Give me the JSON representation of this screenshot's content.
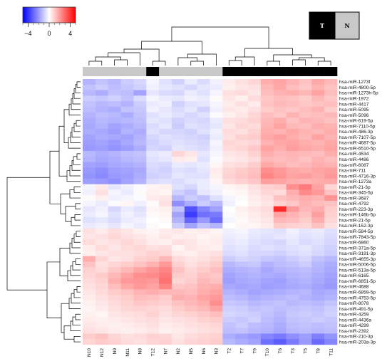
{
  "chart_data": {
    "type": "heatmap",
    "color_scale": {
      "ticks": [
        "−4",
        "0",
        "4"
      ],
      "min": -5,
      "max": 5,
      "low_color": "#0000ff",
      "mid_color": "#ffffff",
      "high_color": "#ff0000"
    },
    "group_legend": [
      {
        "label": "T",
        "color": "#000000",
        "text_color": "#ffffff"
      },
      {
        "label": "N",
        "color": "#c8c8c8",
        "text_color": "#000000"
      }
    ],
    "columns": [
      "N10",
      "N12",
      "N9",
      "N11",
      "N8",
      "T12",
      "N7",
      "N2",
      "N5",
      "N6",
      "N3",
      "T2",
      "T7",
      "T9",
      "T10",
      "T6",
      "T3",
      "T5",
      "T8",
      "T11"
    ],
    "column_groups": [
      "N",
      "N",
      "N",
      "N",
      "N",
      "T",
      "N",
      "N",
      "N",
      "N",
      "N",
      "T",
      "T",
      "T",
      "T",
      "T",
      "T",
      "T",
      "T",
      "T"
    ],
    "rows": [
      "hsa-miR-1273f",
      "hsa-miR-4800-5p",
      "hsa-miR-1273h-5p",
      "hsa-miR-1972",
      "hsa-miR-4417",
      "hsa-miR-5095",
      "hsa-miR-5096",
      "hsa-miR-619-5p",
      "hsa-miR-7110-5p",
      "hsa-miR-486-3p",
      "hsa-miR-7107-5p",
      "hsa-miR-4687-5p",
      "hsa-miR-6510-5p",
      "hsa-miR-4534",
      "hsa-miR-4486",
      "hsa-miR-6087",
      "hsa-miR-711",
      "hsa-miR-4716-3p",
      "hsa-miR-1273a",
      "hsa-miR-21-3p",
      "hsa-miR-345-5p",
      "hsa-miR-3687",
      "hsa-miR-4792",
      "hsa-miR-223-3p",
      "hsa-miR-146b-5p",
      "hsa-miR-21-5p",
      "hsa-miR-152-3p",
      "hsa-miR-584-5p",
      "hsa-miR-7843-5p",
      "hsa-miR-6860",
      "hsa-miR-371a-5p",
      "hsa-miR-3191-3p",
      "hsa-miR-4655-3p",
      "hsa-miR-5006-5p",
      "hsa-miR-513a-5p",
      "hsa-miR-6165",
      "hsa-miR-6851-5p",
      "hsa-miR-4688",
      "hsa-miR-6859-5p",
      "hsa-miR-4753-5p",
      "hsa-miR-8078",
      "hsa-miR-491-5p",
      "hsa-miR-4259",
      "hsa-miR-4436a",
      "hsa-miR-4299",
      "hsa-miR-2392",
      "hsa-miR-210-3p",
      "hsa-miR-203a-3p"
    ],
    "values": [
      [
        -1.5,
        -1.2,
        -1.4,
        -1.0,
        -0.8,
        -0.2,
        -0.6,
        -0.9,
        -0.4,
        -0.7,
        -0.3,
        0.4,
        0.6,
        0.8,
        1.6,
        1.8,
        1.5,
        1.2,
        1.7,
        1.4
      ],
      [
        -1.2,
        -1.0,
        -1.3,
        -1.1,
        -0.9,
        -0.3,
        -0.5,
        -0.6,
        -0.8,
        -0.5,
        -0.4,
        0.3,
        0.5,
        0.6,
        1.4,
        1.7,
        1.3,
        1.1,
        1.5,
        1.2
      ],
      [
        -1.4,
        -1.6,
        -1.2,
        -1.3,
        -1.8,
        -0.5,
        -0.7,
        -0.8,
        -0.4,
        -0.6,
        -0.2,
        0.6,
        0.7,
        0.5,
        1.3,
        1.5,
        1.6,
        1.4,
        1.8,
        1.3
      ],
      [
        -1.0,
        -1.1,
        -0.9,
        -1.2,
        -0.7,
        -0.2,
        -0.4,
        -0.5,
        -0.3,
        -0.4,
        0.1,
        0.5,
        0.3,
        0.7,
        1.1,
        1.3,
        1.2,
        1.0,
        1.4,
        1.1
      ],
      [
        -1.2,
        -1.4,
        -1.3,
        -1.5,
        -1.0,
        -0.4,
        -0.3,
        -0.9,
        -0.6,
        -0.5,
        -0.2,
        0.4,
        0.6,
        0.4,
        1.2,
        1.4,
        1.3,
        1.1,
        1.2,
        1.3
      ],
      [
        -1.3,
        -1.5,
        -1.6,
        -1.2,
        -1.1,
        -0.3,
        -0.5,
        -0.7,
        -0.5,
        -0.9,
        -0.3,
        0.5,
        0.4,
        0.6,
        1.0,
        1.2,
        1.1,
        1.3,
        1.5,
        1.0
      ],
      [
        -1.5,
        -1.3,
        -1.4,
        -1.6,
        -1.2,
        -0.6,
        -0.4,
        -0.6,
        -0.8,
        -0.6,
        -0.1,
        0.3,
        0.5,
        0.8,
        1.3,
        1.1,
        1.5,
        1.2,
        1.3,
        1.4
      ],
      [
        -1.6,
        -1.4,
        -1.5,
        -1.4,
        -1.3,
        -0.5,
        -0.6,
        -0.9,
        -0.7,
        -0.8,
        -0.4,
        0.6,
        0.7,
        0.9,
        1.4,
        1.6,
        1.2,
        1.5,
        1.4,
        1.2
      ],
      [
        -1.7,
        -1.5,
        -1.8,
        -1.6,
        -1.4,
        -0.7,
        -0.5,
        -1.0,
        -0.6,
        -0.7,
        -0.5,
        0.5,
        0.8,
        0.7,
        1.5,
        1.8,
        1.4,
        1.3,
        1.6,
        1.5
      ],
      [
        -1.6,
        -1.7,
        -1.9,
        -1.5,
        -1.6,
        -0.6,
        -0.8,
        -0.8,
        -0.9,
        -0.6,
        -0.3,
        0.7,
        0.6,
        0.9,
        1.6,
        1.5,
        1.7,
        1.5,
        1.4,
        1.6
      ],
      [
        -1.8,
        -1.6,
        -1.7,
        -1.8,
        -1.5,
        -0.8,
        -0.6,
        -0.7,
        -0.8,
        -0.9,
        -0.4,
        0.6,
        0.9,
        1.0,
        1.7,
        1.9,
        1.6,
        1.4,
        1.8,
        1.5
      ],
      [
        -1.9,
        -1.8,
        -2.0,
        -1.7,
        -1.4,
        -0.9,
        -0.7,
        -0.6,
        -0.7,
        -0.8,
        -0.2,
        0.8,
        0.7,
        0.8,
        1.5,
        1.7,
        1.8,
        1.6,
        1.5,
        1.7
      ],
      [
        -2.0,
        -1.9,
        -2.1,
        -1.9,
        -1.6,
        -0.8,
        -0.9,
        -0.5,
        -0.6,
        -0.7,
        -0.3,
        0.7,
        0.8,
        1.1,
        1.8,
        1.6,
        1.9,
        1.7,
        1.6,
        1.8
      ],
      [
        -1.4,
        -1.6,
        -1.5,
        -1.3,
        -1.2,
        -0.5,
        -0.4,
        0.8,
        0.5,
        -0.5,
        -0.2,
        0.5,
        0.6,
        0.9,
        1.6,
        1.4,
        1.5,
        1.4,
        1.3,
        1.6
      ],
      [
        -1.5,
        -1.7,
        -1.6,
        -1.4,
        -1.3,
        -0.6,
        -0.5,
        0.4,
        0.3,
        -0.6,
        -0.1,
        0.4,
        0.5,
        0.7,
        1.4,
        1.3,
        1.4,
        1.2,
        1.5,
        1.3
      ],
      [
        -1.8,
        -1.9,
        -1.7,
        -1.6,
        -1.5,
        -0.7,
        -0.8,
        -0.4,
        -0.5,
        -0.4,
        0.2,
        0.6,
        0.7,
        1.0,
        1.7,
        1.5,
        1.3,
        1.4,
        1.6,
        1.5
      ],
      [
        -2.0,
        -2.2,
        -1.9,
        -1.8,
        -1.7,
        -0.8,
        -0.9,
        -0.6,
        -0.7,
        -0.5,
        0.4,
        0.8,
        1.0,
        1.2,
        2.2,
        2.0,
        1.7,
        1.6,
        1.8,
        1.9
      ],
      [
        -2.1,
        -2.3,
        -2.0,
        -1.9,
        -1.6,
        -0.9,
        -0.8,
        -0.5,
        -0.6,
        -0.6,
        0.3,
        0.9,
        1.1,
        1.3,
        2.4,
        2.1,
        1.8,
        1.9,
        1.7,
        2.0
      ],
      [
        -1.9,
        -2.0,
        -2.2,
        -1.8,
        -1.5,
        -0.7,
        -0.6,
        -0.7,
        -0.5,
        -0.4,
        0.2,
        0.7,
        0.9,
        1.1,
        1.9,
        1.8,
        1.6,
        1.5,
        1.6,
        1.7
      ],
      [
        -0.2,
        0.4,
        -0.5,
        -0.3,
        -0.1,
        0.2,
        0.3,
        -0.6,
        -0.8,
        -0.4,
        -0.2,
        0.2,
        0.3,
        0.6,
        0.9,
        1.0,
        2.2,
        2.6,
        1.8,
        0.8
      ],
      [
        -0.3,
        0.6,
        -0.2,
        -0.4,
        0.1,
        0.3,
        0.2,
        -0.9,
        -1.2,
        -0.5,
        -0.3,
        0.1,
        0.2,
        0.5,
        0.8,
        0.7,
        1.6,
        2.3,
        2.0,
        1.2
      ],
      [
        0.1,
        0.3,
        -0.3,
        -0.2,
        -0.1,
        0.4,
        0.5,
        -1.4,
        -1.0,
        -1.2,
        -0.6,
        -0.2,
        0.1,
        0.4,
        0.6,
        1.2,
        1.4,
        1.6,
        1.5,
        2.1
      ],
      [
        -0.2,
        -0.4,
        -0.1,
        0.2,
        -0.3,
        0.1,
        0.6,
        -2.2,
        -1.6,
        -1.0,
        -1.4,
        -0.3,
        0.0,
        0.3,
        0.5,
        0.9,
        1.1,
        1.5,
        1.3,
        1.2
      ],
      [
        -0.5,
        -0.3,
        -0.8,
        -0.4,
        -0.6,
        0.2,
        0.3,
        -1.2,
        -3.4,
        -2.4,
        -1.8,
        0.0,
        0.3,
        0.5,
        0.7,
        4.2,
        2.0,
        1.4,
        1.6,
        1.0
      ],
      [
        -0.4,
        -0.2,
        -0.6,
        -0.3,
        -0.5,
        0.1,
        0.2,
        -1.8,
        -3.8,
        -2.8,
        -2.6,
        -0.1,
        0.2,
        0.4,
        0.6,
        1.8,
        1.5,
        1.2,
        1.9,
        0.9
      ],
      [
        -0.6,
        -0.5,
        -0.7,
        -0.4,
        -0.3,
        0.0,
        0.1,
        -1.5,
        -3.0,
        -2.0,
        -2.9,
        -0.2,
        0.1,
        0.3,
        0.5,
        1.4,
        1.3,
        1.0,
        1.6,
        0.8
      ],
      [
        -0.4,
        -0.3,
        -0.5,
        -0.2,
        -0.4,
        0.1,
        0.0,
        -1.0,
        -1.8,
        -1.2,
        -1.5,
        0.0,
        0.2,
        0.2,
        0.4,
        1.0,
        0.9,
        0.8,
        1.2,
        0.6
      ],
      [
        0.6,
        0.4,
        0.7,
        0.5,
        0.3,
        0.2,
        0.4,
        0.5,
        0.3,
        0.4,
        0.2,
        -0.3,
        -0.2,
        -0.4,
        -0.5,
        -0.6,
        -0.3,
        -0.5,
        -0.4,
        -0.6
      ],
      [
        0.5,
        0.6,
        0.8,
        0.6,
        0.5,
        0.3,
        0.5,
        0.3,
        0.4,
        0.2,
        0.3,
        -0.4,
        -0.3,
        -0.5,
        -0.6,
        -0.5,
        -0.4,
        -0.6,
        -0.5,
        -0.7
      ],
      [
        0.7,
        0.5,
        0.6,
        0.8,
        0.6,
        0.4,
        0.3,
        0.6,
        0.5,
        0.3,
        0.4,
        -0.5,
        -0.4,
        -0.6,
        -0.7,
        -0.8,
        -0.5,
        -0.7,
        -0.6,
        -0.8
      ],
      [
        0.4,
        0.7,
        0.5,
        0.7,
        0.8,
        0.6,
        0.7,
        0.2,
        0.5,
        0.4,
        0.3,
        -0.6,
        -0.5,
        -0.7,
        -0.6,
        -0.7,
        -0.6,
        -0.5,
        -0.7,
        -0.9
      ],
      [
        0.3,
        0.5,
        0.6,
        0.6,
        0.7,
        0.9,
        0.8,
        0.4,
        0.3,
        0.5,
        0.6,
        -0.7,
        -0.6,
        -0.8,
        -0.8,
        -0.9,
        -0.7,
        -0.6,
        -0.8,
        -1.0
      ],
      [
        1.6,
        0.8,
        0.5,
        0.6,
        0.9,
        1.0,
        1.4,
        0.7,
        0.5,
        0.6,
        0.8,
        -1.0,
        -0.8,
        -0.9,
        -1.1,
        -1.2,
        -1.0,
        -0.8,
        -1.2,
        -1.4
      ],
      [
        1.2,
        0.6,
        0.8,
        1.0,
        1.2,
        1.5,
        2.0,
        0.9,
        0.6,
        0.8,
        1.0,
        -1.4,
        -1.2,
        -1.1,
        -1.5,
        -1.3,
        -1.2,
        -1.0,
        -1.4,
        -1.6
      ],
      [
        0.9,
        0.7,
        1.1,
        1.4,
        1.8,
        2.1,
        2.4,
        1.2,
        0.8,
        1.0,
        1.3,
        -1.6,
        -1.5,
        -1.4,
        -1.7,
        -1.5,
        -1.4,
        -1.3,
        -1.5,
        -1.7
      ],
      [
        0.8,
        1.0,
        1.4,
        1.8,
        2.2,
        2.3,
        2.6,
        1.0,
        0.9,
        1.2,
        1.1,
        -1.8,
        -1.6,
        -1.5,
        -1.6,
        -1.7,
        -1.5,
        -1.4,
        -1.6,
        -1.8
      ],
      [
        0.7,
        0.9,
        1.6,
        2.0,
        2.1,
        2.0,
        2.8,
        0.8,
        1.0,
        1.4,
        1.2,
        -1.9,
        -1.7,
        -1.6,
        -1.8,
        -1.9,
        -1.6,
        -1.5,
        -1.7,
        -1.9
      ],
      [
        0.6,
        0.8,
        1.3,
        1.7,
        2.0,
        1.8,
        2.4,
        1.1,
        1.2,
        1.5,
        1.6,
        -1.7,
        -1.8,
        -1.7,
        -1.9,
        -1.8,
        -1.7,
        -1.6,
        -1.8,
        -2.0
      ],
      [
        0.5,
        0.7,
        1.0,
        1.2,
        1.5,
        1.6,
        1.4,
        1.4,
        1.3,
        1.6,
        1.8,
        -1.5,
        -1.6,
        -1.8,
        -1.7,
        -1.6,
        -1.5,
        -1.4,
        -1.7,
        -1.6
      ],
      [
        0.4,
        0.6,
        0.8,
        1.0,
        1.3,
        1.2,
        1.0,
        1.6,
        1.5,
        1.8,
        2.0,
        -1.3,
        -1.4,
        -1.6,
        -1.5,
        -1.4,
        -1.3,
        -1.5,
        -1.6,
        -1.5
      ],
      [
        0.3,
        0.5,
        0.7,
        0.9,
        1.1,
        1.0,
        0.9,
        1.2,
        1.4,
        1.6,
        2.2,
        -1.1,
        -1.2,
        -1.4,
        -1.3,
        -1.2,
        -1.4,
        -1.3,
        -1.4,
        -1.2
      ],
      [
        0.2,
        0.4,
        0.6,
        0.8,
        0.9,
        0.8,
        0.7,
        1.0,
        1.2,
        1.4,
        1.8,
        -0.9,
        -1.0,
        -1.2,
        -1.1,
        -1.3,
        -1.2,
        -1.1,
        -1.2,
        -1.0
      ],
      [
        0.3,
        0.2,
        0.5,
        0.6,
        0.7,
        0.9,
        0.6,
        0.8,
        0.9,
        1.1,
        1.3,
        -0.8,
        -0.9,
        -1.0,
        -1.2,
        -1.4,
        -1.1,
        -1.0,
        -1.1,
        -0.9
      ],
      [
        0.4,
        0.3,
        0.4,
        0.5,
        0.6,
        0.7,
        0.5,
        0.6,
        0.7,
        0.9,
        1.0,
        -1.0,
        -1.1,
        -0.9,
        -1.3,
        -1.5,
        -1.2,
        -1.1,
        -1.0,
        -1.1
      ],
      [
        0.5,
        0.4,
        0.3,
        0.4,
        0.5,
        0.6,
        0.4,
        0.5,
        0.6,
        0.7,
        0.8,
        -1.2,
        -1.0,
        -1.3,
        -1.4,
        -1.6,
        -1.3,
        -1.2,
        -1.3,
        -1.2
      ],
      [
        0.6,
        0.5,
        0.4,
        0.3,
        0.4,
        0.5,
        0.3,
        0.4,
        0.5,
        0.6,
        0.7,
        -1.3,
        -1.2,
        -1.4,
        -1.5,
        -1.7,
        -1.4,
        -1.3,
        -1.4,
        -1.3
      ],
      [
        1.0,
        1.2,
        0.8,
        0.6,
        0.7,
        0.9,
        0.8,
        0.5,
        0.7,
        0.8,
        0.9,
        -1.6,
        -1.8,
        -2.0,
        -2.4,
        -2.6,
        -2.2,
        -1.9,
        -2.5,
        -2.1
      ],
      [
        0.8,
        1.0,
        0.9,
        0.7,
        0.6,
        0.8,
        0.9,
        0.6,
        0.8,
        0.9,
        1.0,
        -1.4,
        -1.6,
        -1.8,
        -2.8,
        -3.2,
        -2.6,
        -2.0,
        -2.9,
        -2.4
      ]
    ]
  }
}
